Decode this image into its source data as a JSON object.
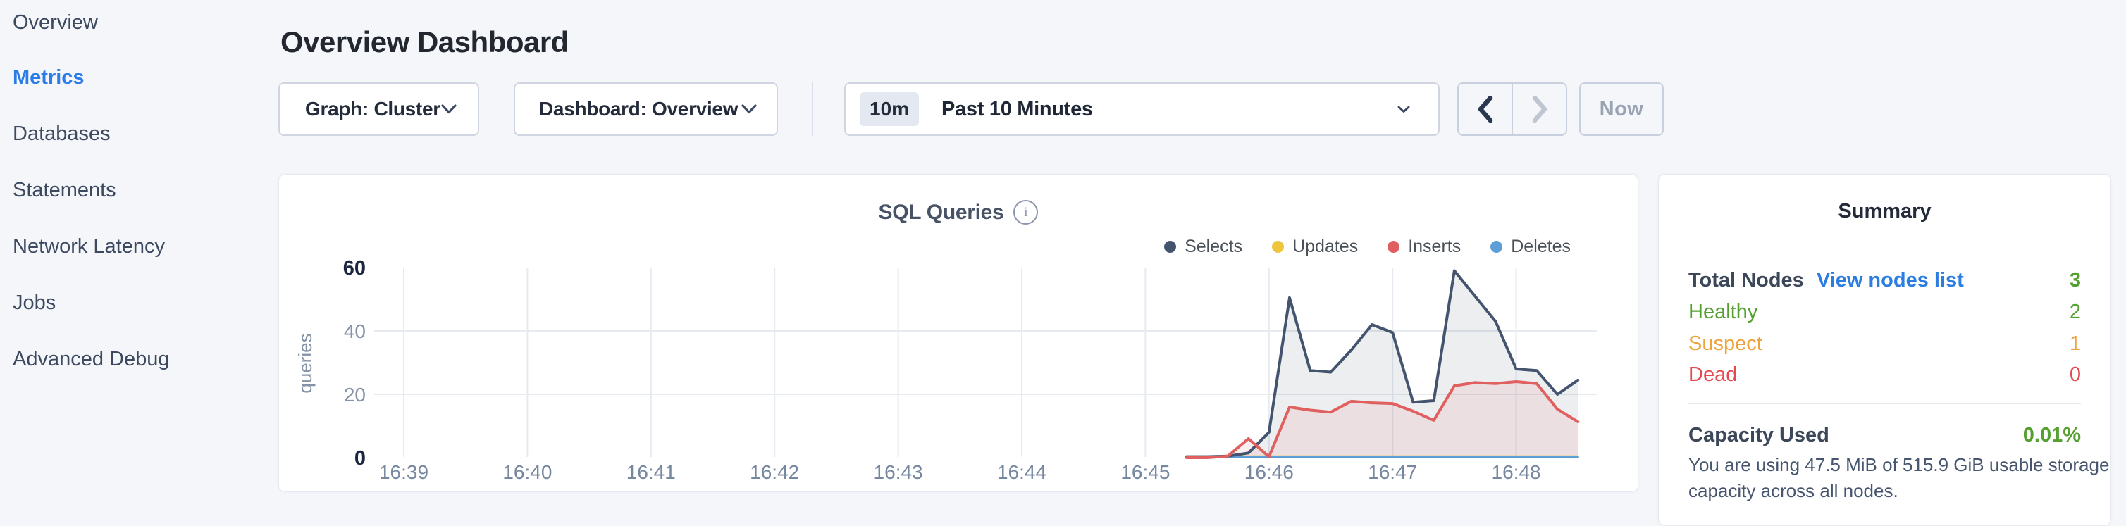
{
  "sidebar": {
    "items": [
      {
        "label": "Overview",
        "active": false
      },
      {
        "label": "Metrics",
        "active": true
      },
      {
        "label": "Databases",
        "active": false
      },
      {
        "label": "Statements",
        "active": false
      },
      {
        "label": "Network Latency",
        "active": false
      },
      {
        "label": "Jobs",
        "active": false
      },
      {
        "label": "Advanced Debug",
        "active": false
      }
    ]
  },
  "header": {
    "title": "Overview Dashboard"
  },
  "toolbar": {
    "graph_dropdown": {
      "label": "Graph: Cluster"
    },
    "dashboard_dropdown": {
      "label": "Dashboard: Overview"
    },
    "time_selector": {
      "badge": "10m",
      "label": "Past 10 Minutes"
    },
    "now_label": "Now"
  },
  "chart_data": {
    "type": "area",
    "title": "SQL Queries",
    "ylabel": "queries",
    "ylim": [
      0,
      60
    ],
    "yticks": [
      0,
      20,
      40,
      60
    ],
    "x_ticks": [
      "16:39",
      "16:40",
      "16:41",
      "16:42",
      "16:43",
      "16:44",
      "16:45",
      "16:46",
      "16:47",
      "16:48"
    ],
    "x_start": "16:45:20",
    "x_step_seconds": 10,
    "grid": true,
    "legend_position": "top-right",
    "series": [
      {
        "name": "Selects",
        "color": "#44546f",
        "fill": "rgba(68,84,111,0.10)",
        "values": [
          0.3,
          0.3,
          0.5,
          1.5,
          8,
          50.5,
          27.5,
          27,
          34,
          42,
          39.5,
          17.5,
          18,
          59,
          51,
          43,
          28,
          27.5,
          20,
          24.5
        ]
      },
      {
        "name": "Updates",
        "color": "#f0c53e",
        "fill": "none",
        "values": [
          0.4,
          0.4,
          0.4,
          0.4,
          0.4,
          0.4,
          0.4,
          0.4,
          0.4,
          0.4,
          0.4,
          0.4,
          0.4,
          0.4,
          0.4,
          0.4,
          0.4,
          0.4,
          0.4,
          0.4
        ]
      },
      {
        "name": "Inserts",
        "color": "#e05f5f",
        "fill": "rgba(224,95,95,0.10)",
        "values": [
          0,
          0,
          0.5,
          6,
          0.3,
          16,
          15,
          14.4,
          17.8,
          17.3,
          17.1,
          14.7,
          11.8,
          22.7,
          23.7,
          23.4,
          24,
          23.4,
          15.3,
          11.3
        ]
      },
      {
        "name": "Deletes",
        "color": "#5c9fd6",
        "fill": "none",
        "values": [
          0.15,
          0.15,
          0.15,
          0.15,
          0.15,
          0.15,
          0.15,
          0.15,
          0.15,
          0.15,
          0.15,
          0.15,
          0.15,
          0.15,
          0.15,
          0.15,
          0.15,
          0.15,
          0.15,
          0.15
        ]
      }
    ]
  },
  "summary": {
    "title": "Summary",
    "rows": [
      {
        "label": "Total Nodes",
        "link": "View nodes list",
        "value": "3",
        "label_color": "#3c4859",
        "value_color": "#55a031"
      },
      {
        "label": "Healthy",
        "value": "2",
        "label_color": "#55a031",
        "value_color": "#55a031"
      },
      {
        "label": "Suspect",
        "value": "1",
        "label_color": "#efa33d",
        "value_color": "#efa33d"
      },
      {
        "label": "Dead",
        "value": "0",
        "label_color": "#e5494d",
        "value_color": "#e5494d"
      }
    ],
    "capacity": {
      "label": "Capacity Used",
      "value": "0.01%",
      "value_color": "#55a031",
      "note_lines": [
        "You are using 47.5 MiB of 515.9 GiB usable storage",
        "capacity across all nodes."
      ]
    }
  },
  "colors": {
    "accent_blue": "#2b7ce9",
    "link_blue": "#2b7de1",
    "green": "#55a031",
    "orange": "#efa33d",
    "red": "#e5494d",
    "page_bg": "#f4f6fa"
  }
}
